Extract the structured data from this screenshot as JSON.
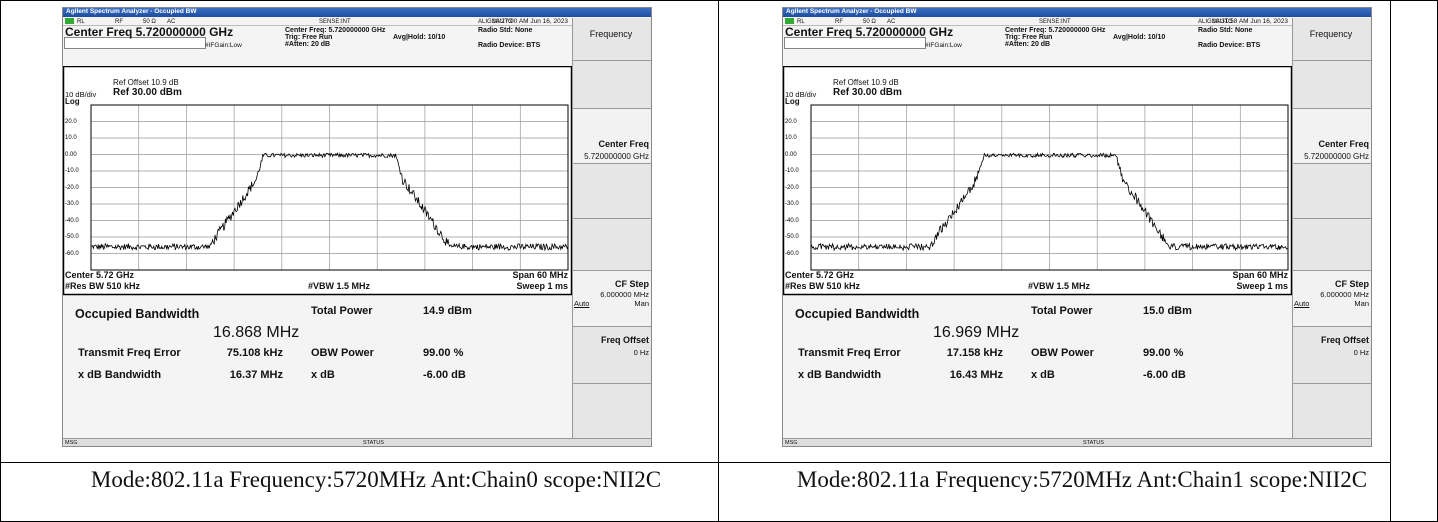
{
  "panels": [
    {
      "app_title": "Agilent Spectrum Analyzer - Occupied BW",
      "status_bar": {
        "rl": "RL",
        "rf": "RF",
        "impedance": "50 Ω",
        "coupling": "AC",
        "sense": "SENSE:INT",
        "align": "ALIGNAUTO",
        "timestamp": "10:27:00 AM Jun 16, 2023"
      },
      "header": {
        "center_freq": "Center Freq 5.720000000 GHz",
        "setting_center": "Center Freq: 5.720000000 GHz",
        "trig": "Trig: Free Run",
        "avg_hold": "Avg|Hold: 10/10",
        "atten": "#Atten: 20 dB",
        "if_gain": "#IFGain:Low",
        "radio_std": "Radio Std: None",
        "radio_device": "Radio Device: BTS"
      },
      "graph": {
        "ref_offset": "Ref Offset 10.9 dB",
        "scale": "10 dB/div",
        "ref_level": "Ref 30.00 dBm",
        "log": "Log",
        "y_labels": [
          "20.0",
          "10.0",
          "0.00",
          "-10.0",
          "-20.0",
          "-30.0",
          "-40.0",
          "-50.0",
          "-60.0"
        ],
        "center": "Center 5.72 GHz",
        "res_bw": "#Res BW 510 kHz",
        "vbw": "#VBW 1.5 MHz",
        "span": "Span 60 MHz",
        "sweep": "Sweep 1 ms"
      },
      "results": {
        "obw_label": "Occupied Bandwidth",
        "obw_value": "16.868 MHz",
        "total_power_label": "Total Power",
        "total_power_value": "14.9 dBm",
        "freq_error_label": "Transmit Freq Error",
        "freq_error_value": "75.108 kHz",
        "obw_power_label": "OBW Power",
        "obw_power_value": "99.00 %",
        "xdb_bw_label": "x dB Bandwidth",
        "xdb_bw_value": "16.37 MHz",
        "xdb_label": "x dB",
        "xdb_value": "-6.00 dB"
      },
      "softkeys": {
        "menu": "Frequency",
        "center_freq": "Center Freq",
        "center_freq_value": "5.720000000 GHz",
        "cf_step": "CF Step",
        "cf_step_value": "6.000000 MHz",
        "auto": "Auto",
        "man": "Man",
        "freq_offset": "Freq Offset",
        "freq_offset_value": "0 Hz"
      },
      "footer": {
        "msg": "MSG",
        "status": "STATUS"
      },
      "caption": "Mode:802.11a Frequency:5720MHz Ant:Chain0 scope:NII2C"
    },
    {
      "app_title": "Agilent Spectrum Analyzer - Occupied BW",
      "status_bar": {
        "rl": "RL",
        "rf": "RF",
        "impedance": "50 Ω",
        "coupling": "AC",
        "sense": "SENSE:INT",
        "align": "ALIGNAUTO",
        "timestamp": "10:31:58 AM Jun 16, 2023"
      },
      "header": {
        "center_freq": "Center Freq 5.720000000 GHz",
        "setting_center": "Center Freq: 5.720000000 GHz",
        "trig": "Trig: Free Run",
        "avg_hold": "Avg|Hold: 10/10",
        "atten": "#Atten: 20 dB",
        "if_gain": "#IFGain:Low",
        "radio_std": "Radio Std: None",
        "radio_device": "Radio Device: BTS"
      },
      "graph": {
        "ref_offset": "Ref Offset 10.9 dB",
        "scale": "10 dB/div",
        "ref_level": "Ref 30.00 dBm",
        "log": "Log",
        "y_labels": [
          "20.0",
          "10.0",
          "0.00",
          "-10.0",
          "-20.0",
          "-30.0",
          "-40.0",
          "-50.0",
          "-60.0"
        ],
        "center": "Center 5.72 GHz",
        "res_bw": "#Res BW 510 kHz",
        "vbw": "#VBW 1.5 MHz",
        "span": "Span 60 MHz",
        "sweep": "Sweep 1 ms"
      },
      "results": {
        "obw_label": "Occupied Bandwidth",
        "obw_value": "16.969 MHz",
        "total_power_label": "Total Power",
        "total_power_value": "15.0 dBm",
        "freq_error_label": "Transmit Freq Error",
        "freq_error_value": "17.158 kHz",
        "obw_power_label": "OBW Power",
        "obw_power_value": "99.00 %",
        "xdb_bw_label": "x dB Bandwidth",
        "xdb_bw_value": "16.43 MHz",
        "xdb_label": "x dB",
        "xdb_value": "-6.00 dB"
      },
      "softkeys": {
        "menu": "Frequency",
        "center_freq": "Center Freq",
        "center_freq_value": "5.720000000 GHz",
        "cf_step": "CF Step",
        "cf_step_value": "6.000000 MHz",
        "auto": "Auto",
        "man": "Man",
        "freq_offset": "Freq Offset",
        "freq_offset_value": "0 Hz"
      },
      "footer": {
        "msg": "MSG",
        "status": "STATUS"
      },
      "caption": "Mode:802.11a Frequency:5720MHz Ant:Chain1 scope:NII2C"
    }
  ]
}
